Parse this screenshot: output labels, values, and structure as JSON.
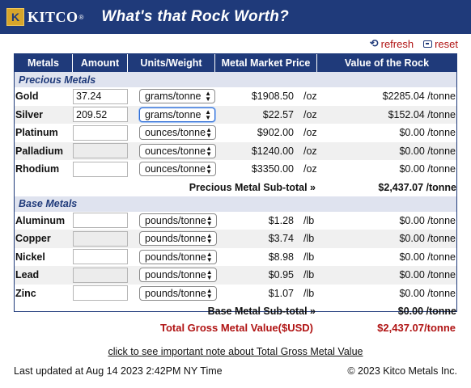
{
  "header": {
    "logo_text": "KITCO",
    "logo_reg": "®",
    "title": "What's that Rock Worth?"
  },
  "actions": {
    "refresh": "refresh",
    "reset": "reset"
  },
  "table": {
    "columns": [
      "Metals",
      "Amount",
      "Units/Weight",
      "Metal Market Price",
      "Value of the Rock"
    ],
    "precious": {
      "section": "Precious Metals",
      "rows": [
        {
          "metal": "Gold",
          "amount": "37.24",
          "units": "grams/tonne",
          "price": "$1908.50",
          "unit": "/oz",
          "value": "$2285.04 /tonne"
        },
        {
          "metal": "Silver",
          "amount": "209.52",
          "units": "grams/tonne",
          "price": "$22.57",
          "unit": "/oz",
          "value": "$152.04 /tonne"
        },
        {
          "metal": "Platinum",
          "amount": "",
          "units": "ounces/tonne",
          "price": "$902.00",
          "unit": "/oz",
          "value": "$0.00 /tonne"
        },
        {
          "metal": "Palladium",
          "amount": "",
          "units": "ounces/tonne",
          "price": "$1240.00",
          "unit": "/oz",
          "value": "$0.00 /tonne"
        },
        {
          "metal": "Rhodium",
          "amount": "",
          "units": "ounces/tonne",
          "price": "$3350.00",
          "unit": "/oz",
          "value": "$0.00 /tonne"
        }
      ],
      "subtotal_label": "Precious Metal Sub-total »",
      "subtotal_value": "$2,437.07 /tonne"
    },
    "base": {
      "section": "Base Metals",
      "rows": [
        {
          "metal": "Aluminum",
          "amount": "",
          "units": "pounds/tonne",
          "price": "$1.28",
          "unit": "/lb",
          "value": "$0.00 /tonne"
        },
        {
          "metal": "Copper",
          "amount": "",
          "units": "pounds/tonne",
          "price": "$3.74",
          "unit": "/lb",
          "value": "$0.00 /tonne"
        },
        {
          "metal": "Nickel",
          "amount": "",
          "units": "pounds/tonne",
          "price": "$8.98",
          "unit": "/lb",
          "value": "$0.00 /tonne"
        },
        {
          "metal": "Lead",
          "amount": "",
          "units": "pounds/tonne",
          "price": "$0.95",
          "unit": "/lb",
          "value": "$0.00 /tonne"
        },
        {
          "metal": "Zinc",
          "amount": "",
          "units": "pounds/tonne",
          "price": "$1.07",
          "unit": "/lb",
          "value": "$0.00 /tonne"
        }
      ],
      "subtotal_label": "Base Metal Sub-total »",
      "subtotal_value": "$0.00 /tonne"
    }
  },
  "total": {
    "label": "Total Gross Metal Value($USD)",
    "value": "$2,437.07/tonne"
  },
  "note_link": "click to see important note about Total Gross Metal Value",
  "footer": {
    "updated": "Last updated at Aug 14 2023 2:42PM NY Time",
    "copyright": "© 2023 Kitco Metals Inc."
  },
  "colors": {
    "header_bg": "#1f3a7a",
    "accent_red": "#b01313",
    "section_bg": "#dfe3ef"
  }
}
